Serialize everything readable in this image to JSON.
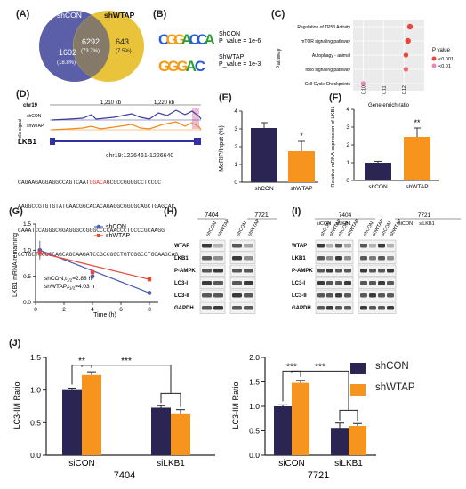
{
  "panels": {
    "A": {
      "label": "(A)",
      "set1": "shCON",
      "set2": "shWTAP",
      "only1": "1602",
      "only1_pct": "(18.8%)",
      "both": "6292",
      "both_pct": "(73.7%)",
      "only2": "643",
      "only2_pct": "(7.5%)",
      "color1": "#5a5fa8",
      "color2": "#e9c43a"
    },
    "B": {
      "label": "(B)",
      "motif1_name": "ShCON",
      "motif1_p": "P_value = 1e-6",
      "motif2_name": "ShWTAP",
      "motif2_p": "P_value = 1e-3",
      "motif1_letters": [
        "C",
        "G",
        "G",
        "A",
        "C",
        "C",
        "A"
      ],
      "motif2_letters": [
        "G",
        "G",
        "G",
        "A",
        "C"
      ]
    },
    "C": {
      "label": "(C)",
      "ylabel": "Pathway",
      "xlabel": "Gene enrich ratio",
      "pathways": [
        "Regulation of TP53 Activity",
        "mTOR signaling pathway",
        "Autophagy - animal",
        "foxo signaling pathway",
        "Cell Cycle Checkpoints"
      ],
      "ratios": [
        0.123,
        0.122,
        0.121,
        0.121,
        0.1
      ],
      "xticks": [
        "0.10",
        "0.11",
        "0.12"
      ],
      "legend_title": "P value",
      "legend_items": [
        "<0.001",
        "<0.01"
      ]
    },
    "D": {
      "label": "(D)",
      "chrom": "chr19",
      "kb1": "1,210 kb",
      "kb2": "1,220 kb",
      "track_ylabel": "m6a signal",
      "track1": "shCON",
      "track2": "shWTAP",
      "gene": "LKB1",
      "locus": "chr19:1226461-1226640",
      "seq_lines": [
        {
          "pre": "CAGAAGAGGAGGCCAGTCAAT",
          "hl": "GGACA",
          "post": "GCGCCGGGGCCTCCCC"
        },
        {
          "pre": "AAGGCCGTGTGTATGAACGGCACACAGAGGCGGCGCAGCTGAGCAC",
          "hl": "",
          "post": ""
        },
        {
          "pre": "CAAATCCAGGGCGGAGGGCCGGGCCCCAACCCTCCCCGCAAGG",
          "hl": "",
          "post": ""
        },
        {
          "pre": "CCTGCTCCGCCAGCAGCAAGATCCGCCGGCTGTCGGCCTGCAAGCAG",
          "hl": "",
          "post": ""
        }
      ]
    },
    "E": {
      "label": "(E)",
      "ylabel": "MeRIP/Input (%)",
      "categories": [
        "shCON",
        "shWTAP"
      ],
      "sig": "*"
    },
    "F": {
      "label": "(F)",
      "ylabel": "Relative mRNA expression of LKB1",
      "categories": [
        "shCON",
        "shWTAP"
      ],
      "sig": "**"
    },
    "G": {
      "label": "(G)",
      "ylabel": "LKB1 mRNA remaining",
      "xlabel": "Time (h)",
      "legend": [
        "shCON",
        "shWTAP"
      ],
      "half1": "shCON,t",
      "half1_sub": "1/2",
      "half1_val": "=2.88 h",
      "half2": "shWTAP,t",
      "half2_sub": "1/2",
      "half2_val": "=4.03 h"
    },
    "H": {
      "label": "(H)",
      "cell1": "7404",
      "cell2": "7721",
      "lanes": [
        "shCON",
        "shWTAP",
        "shCON",
        "shWTAP"
      ],
      "rows": [
        "WTAP",
        "LKB1",
        "P-AMPK",
        "LC3-I",
        "LC3-II",
        "GAPDH"
      ]
    },
    "I": {
      "label": "(I)",
      "cell1": "7404",
      "cell2": "7721",
      "groups": [
        "siCON",
        "siLKB1",
        "siCON",
        "siLKB1"
      ],
      "lanes": [
        "shCON",
        "shWTAP",
        "shCON",
        "shWTAP",
        "shCON",
        "shWTAP",
        "shCON",
        "shWTAP"
      ],
      "rows": [
        "WTAP",
        "LKB1",
        "P-AMPK",
        "LC3-I",
        "LC3-II",
        "GAPDH"
      ]
    },
    "J": {
      "label": "(J)",
      "legend": [
        "shCON",
        "shWTAP"
      ],
      "sub1_title": "7404",
      "sub2_title": "7721",
      "ylabel": "LC3-II/I Ratio",
      "groups": [
        "siCON",
        "siLKB1"
      ],
      "sig_left": "**",
      "sig_right": "***",
      "sig_left2": "***",
      "sig_right2": "***"
    }
  },
  "colors": {
    "navy": "#2b2553",
    "orange": "#f7941d",
    "blue": "#4a5fb0",
    "red": "#e8473b",
    "pink": "#e68bb5"
  },
  "chart_data": [
    {
      "type": "bar",
      "panel": "E",
      "categories": [
        "shCON",
        "shWTAP"
      ],
      "values": [
        3.05,
        1.75
      ],
      "errors": [
        0.3,
        0.55
      ],
      "ylim": [
        0,
        4
      ],
      "yticks": [
        0,
        1,
        2,
        3,
        4
      ],
      "ylabel": "MeRIP/Input (%)"
    },
    {
      "type": "bar",
      "panel": "F",
      "categories": [
        "shCON",
        "shWTAP"
      ],
      "values": [
        1.0,
        2.45
      ],
      "errors": [
        0.08,
        0.5
      ],
      "ylim": [
        0,
        4
      ],
      "yticks": [
        0,
        1,
        2,
        3,
        4
      ],
      "ylabel": "Relative mRNA expression of LKB1"
    },
    {
      "type": "line",
      "panel": "G",
      "x": [
        0,
        2,
        4,
        6,
        8
      ],
      "xticks": [
        0,
        2,
        4,
        6,
        8
      ],
      "ylim": [
        0,
        1.5
      ],
      "yticks": [
        0.0,
        0.5,
        1.0,
        1.5
      ],
      "series": [
        {
          "name": "shCON",
          "points": [
            [
              0.3,
              1.0
            ],
            [
              4,
              0.5
            ],
            [
              8,
              0.18
            ]
          ],
          "errors": [
            0.18,
            0.06,
            0.02
          ]
        },
        {
          "name": "shWTAP",
          "points": [
            [
              0.3,
              0.95
            ],
            [
              4,
              0.58
            ],
            [
              8,
              0.44
            ]
          ],
          "errors": [
            0.1,
            0.06,
            0.03
          ]
        }
      ],
      "xlabel": "Time (h)",
      "ylabel": "LKB1 mRNA remaining"
    },
    {
      "type": "bar",
      "panel": "J-7404",
      "categories": [
        "siCON",
        "siLKB1"
      ],
      "series": [
        {
          "name": "shCON",
          "values": [
            1.0,
            0.73
          ],
          "errors": [
            0.03,
            0.03
          ]
        },
        {
          "name": "shWTAP",
          "values": [
            1.23,
            0.63
          ],
          "errors": [
            0.05,
            0.07
          ]
        }
      ],
      "ylim": [
        0,
        1.5
      ],
      "yticks": [
        0.0,
        0.5,
        1.0,
        1.5
      ],
      "ylabel": "LC3-II/I Ratio",
      "title": "7404"
    },
    {
      "type": "bar",
      "panel": "J-7721",
      "categories": [
        "siCON",
        "siLKB1"
      ],
      "series": [
        {
          "name": "shCON",
          "values": [
            1.0,
            0.56
          ],
          "errors": [
            0.03,
            0.1
          ]
        },
        {
          "name": "shWTAP",
          "values": [
            1.48,
            0.6
          ],
          "errors": [
            0.05,
            0.05
          ]
        }
      ],
      "ylim": [
        0,
        2.0
      ],
      "yticks": [
        0.0,
        0.5,
        1.0,
        1.5,
        2.0
      ],
      "ylabel": "LC3-II/I Ratio",
      "title": "7721"
    }
  ]
}
